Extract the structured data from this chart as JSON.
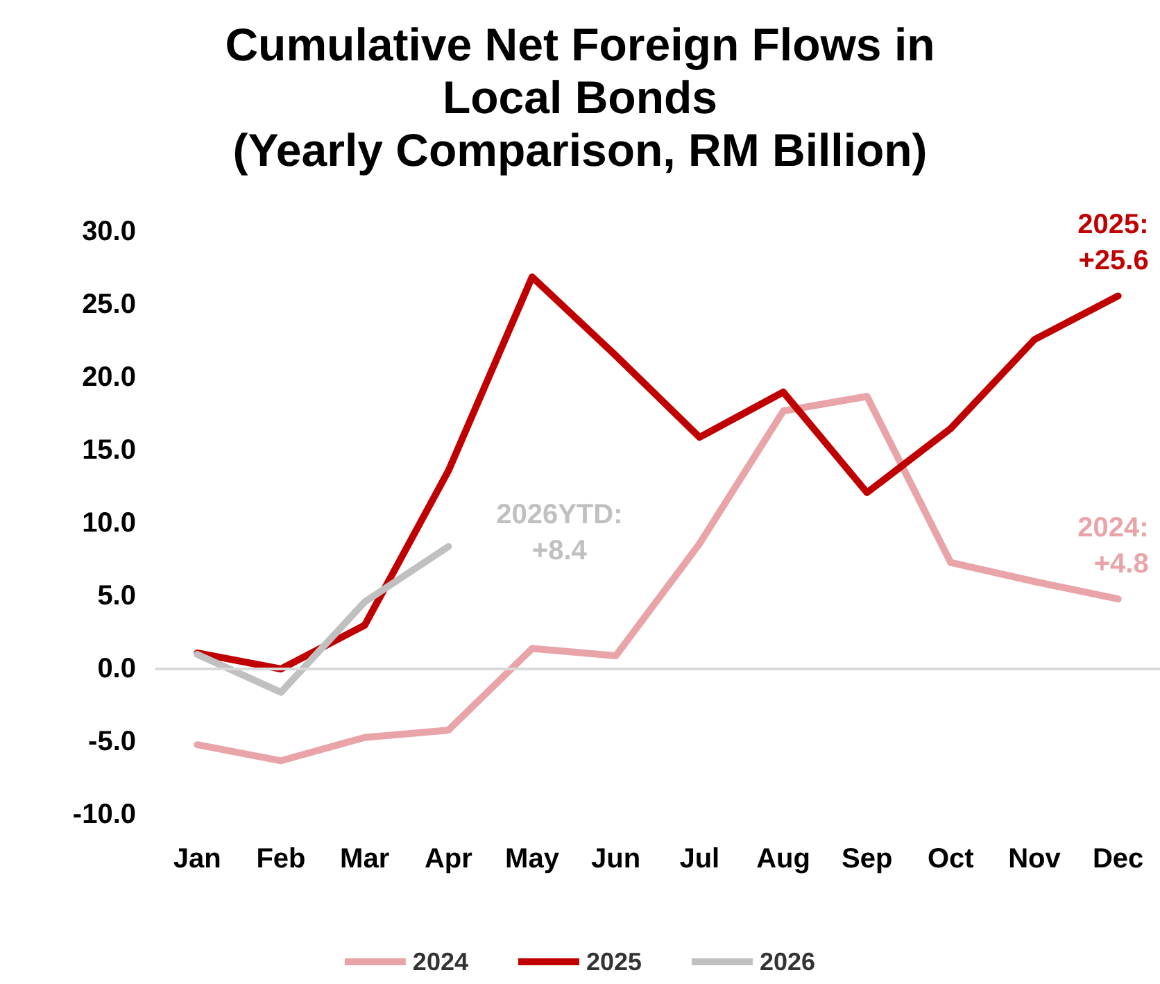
{
  "chart_data": {
    "type": "line",
    "title": "Cumulative Net Foreign Flows in\nLocal Bonds\n(Yearly Comparison, RM Billion)",
    "categories": [
      "Jan",
      "Feb",
      "Mar",
      "Apr",
      "May",
      "Jun",
      "Jul",
      "Aug",
      "Sep",
      "Oct",
      "Nov",
      "Dec"
    ],
    "series": [
      {
        "name": "2024",
        "color": "#e8a4a8",
        "values": [
          -5.2,
          -6.3,
          -4.7,
          -4.2,
          1.4,
          0.9,
          8.6,
          17.7,
          18.7,
          7.3,
          6.0,
          4.8
        ]
      },
      {
        "name": "2025",
        "color": "#c00000",
        "values": [
          1.1,
          0.0,
          3.0,
          13.6,
          26.9,
          21.5,
          15.9,
          19.0,
          12.1,
          16.5,
          22.6,
          25.6
        ]
      },
      {
        "name": "2026",
        "color": "#c0c0c0",
        "values": [
          1.0,
          -1.6,
          4.6,
          8.4,
          null,
          null,
          null,
          null,
          null,
          null,
          null,
          null
        ]
      }
    ],
    "ylim": [
      -10,
      30
    ],
    "yticks": [
      {
        "value": -10,
        "label": "-10.0"
      },
      {
        "value": -5,
        "label": "-5.0"
      },
      {
        "value": 0,
        "label": "0.0"
      },
      {
        "value": 5,
        "label": "5.0"
      },
      {
        "value": 10,
        "label": "10.0"
      },
      {
        "value": 15,
        "label": "15.0"
      },
      {
        "value": 20,
        "label": "20.0"
      },
      {
        "value": 25,
        "label": "25.0"
      },
      {
        "value": 30,
        "label": "30.0"
      }
    ],
    "annotations": [
      {
        "text": "2025:\n+25.6",
        "x": "Dec",
        "y": 25.6
      },
      {
        "text": "2024:\n+4.8",
        "x": "Dec",
        "y": 4.8
      },
      {
        "text": "2026YTD:\n+8.4",
        "x": "Apr",
        "y": 8.4
      }
    ],
    "ref_lines": [
      {
        "axis": "y",
        "value": 0,
        "color": "#d9d9d9"
      }
    ],
    "grid": false,
    "legend": "bottom",
    "marker": "none",
    "line_style": "solid"
  }
}
